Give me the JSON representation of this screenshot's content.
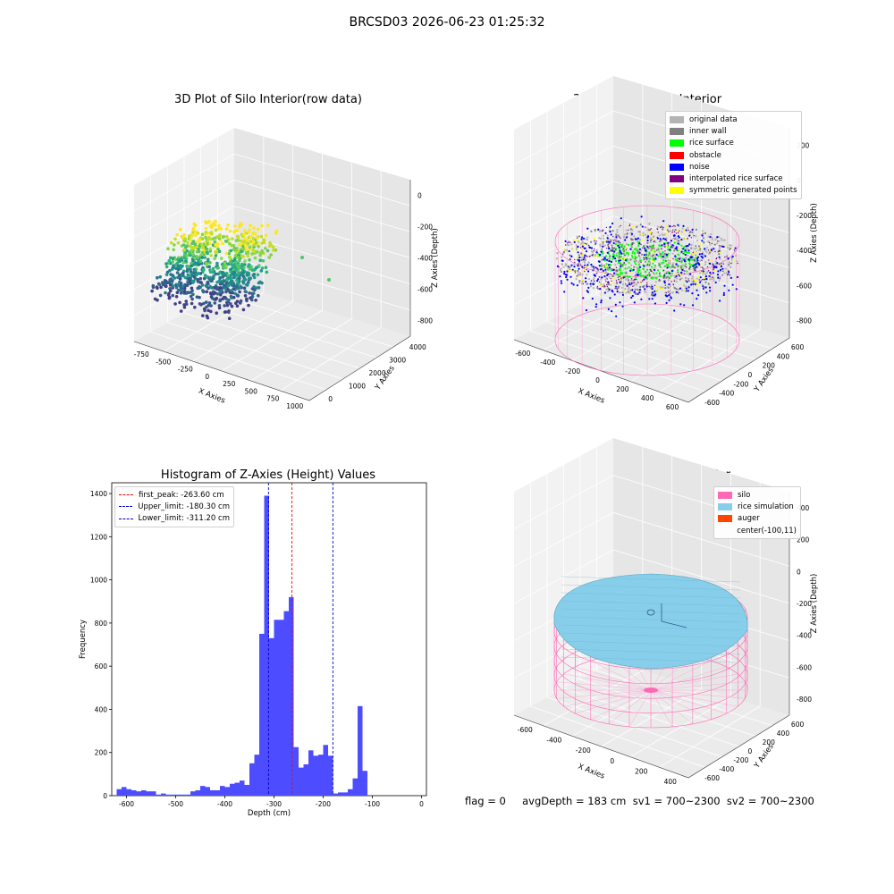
{
  "figure": {
    "suptitle": "BRCSD03 2026-06-23 01:25:32",
    "footer": "flag = 0     avgDepth = 183 cm  sv1 = 700~2300  sv2 = 700~2300"
  },
  "colors": {
    "hist_bar": "#4d4dff",
    "first_peak": "#ff0000",
    "limits": "#0000cc",
    "silo_wire": "#ff69b4",
    "rice_sim": "#87ceeb"
  },
  "chart_data": [
    {
      "type": "scatter",
      "title": "3D Plot of Silo Interior(row data)",
      "xlabel": "X Axies",
      "ylabel": "Y Axies",
      "zlabel": "Z Axies (Depth)",
      "x_ticks": [
        "-750",
        "-500",
        "-250",
        "0",
        "250",
        "500",
        "750",
        "1000"
      ],
      "y_ticks": [
        "0",
        "1000",
        "2000",
        "3000",
        "4000"
      ],
      "z_ticks": [
        "0",
        "-200",
        "-400",
        "-600",
        "-800"
      ],
      "colormap": "viridis"
    },
    {
      "type": "scatter",
      "title": "3D classify of Silo Interior",
      "xlabel": "X Axies",
      "ylabel": "Y Axies",
      "zlabel": "Z Axies (Depth)",
      "x_ticks": [
        "-600",
        "-400",
        "-200",
        "0",
        "200",
        "400",
        "600"
      ],
      "y_ticks": [
        "-600",
        "-400",
        "-200",
        "0",
        "200",
        "400",
        "600"
      ],
      "z_ticks": [
        "200",
        "0",
        "-200",
        "-400",
        "-600",
        "-800"
      ],
      "legend": [
        {
          "label": "original data",
          "color": "#b4b4b4"
        },
        {
          "label": "inner wall",
          "color": "#808080"
        },
        {
          "label": "rice surface",
          "color": "#00ff00"
        },
        {
          "label": "obstacle",
          "color": "#ff0000"
        },
        {
          "label": "noise",
          "color": "#0000ff"
        },
        {
          "label": "interpolated rice surface",
          "color": "#800080"
        },
        {
          "label": "symmetric generated points",
          "color": "#ffff00"
        }
      ]
    },
    {
      "type": "bar",
      "title": "Histogram of Z-Axies (Height) Values",
      "xlabel": "Depth (cm)",
      "ylabel": "Frequency",
      "xlim": [
        -630,
        10
      ],
      "ylim": [
        0,
        1450
      ],
      "x_ticks": [
        -600,
        -500,
        -400,
        -300,
        -200,
        -100,
        0
      ],
      "y_ticks": [
        0,
        200,
        400,
        600,
        800,
        1000,
        1200,
        1400
      ],
      "bin_width": 10,
      "bin_starts": [
        -620,
        -610,
        -600,
        -590,
        -580,
        -570,
        -560,
        -550,
        -540,
        -530,
        -520,
        -510,
        -500,
        -490,
        -480,
        -470,
        -460,
        -450,
        -440,
        -430,
        -420,
        -410,
        -400,
        -390,
        -380,
        -370,
        -360,
        -350,
        -340,
        -330,
        -320,
        -310,
        -300,
        -290,
        -280,
        -270,
        -260,
        -250,
        -240,
        -230,
        -220,
        -210,
        -200,
        -190,
        -180,
        -170,
        -160,
        -150,
        -140,
        -130,
        -120,
        -110,
        -100,
        -90,
        -80,
        -70,
        -60,
        -50,
        -40,
        -30,
        -20
      ],
      "values": [
        30,
        40,
        30,
        25,
        20,
        25,
        20,
        20,
        5,
        10,
        5,
        5,
        5,
        5,
        5,
        20,
        25,
        45,
        40,
        25,
        25,
        45,
        40,
        55,
        60,
        70,
        50,
        150,
        190,
        750,
        1390,
        730,
        815,
        815,
        855,
        920,
        225,
        130,
        145,
        210,
        185,
        190,
        235,
        185,
        10,
        15,
        15,
        30,
        80,
        415,
        115,
        0,
        0,
        0,
        0,
        0,
        0,
        0,
        0,
        0,
        0
      ],
      "lines": [
        {
          "label": "first_peak: -263.60 cm",
          "x": -263.6,
          "color": "#ff0000"
        },
        {
          "label": "Upper_limit: -180.30 cm",
          "x": -180.3,
          "color": "#0000cc"
        },
        {
          "label": "Lower_limit: -311.20 cm",
          "x": -311.2,
          "color": "#0000cc"
        }
      ]
    },
    {
      "type": "scatter",
      "title": "3D simulation of Silo Interior",
      "xlabel": "X Axies",
      "ylabel": "Y Axies",
      "zlabel": "Z Axies (Depth)",
      "x_ticks": [
        "-600",
        "-400",
        "-200",
        "0",
        "200",
        "400"
      ],
      "y_ticks": [
        "-600",
        "-400",
        "-200",
        "0",
        "200",
        "400",
        "600"
      ],
      "z_ticks": [
        "400",
        "200",
        "0",
        "-200",
        "-400",
        "-600",
        "-800"
      ],
      "legend": [
        {
          "label": "silo",
          "color": "#ff69b4"
        },
        {
          "label": "rice simulation",
          "color": "#87ceeb"
        },
        {
          "label": "auger",
          "color": "#ff4500"
        },
        {
          "label": "center(-100,11)",
          "color": ""
        }
      ]
    }
  ]
}
